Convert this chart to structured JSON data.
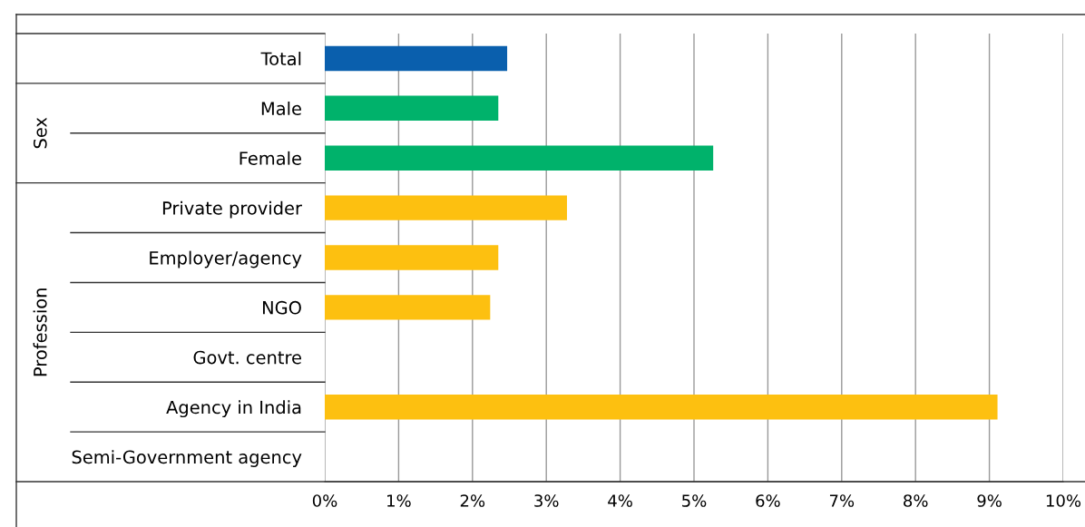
{
  "chart_data": {
    "type": "bar",
    "orientation": "horizontal",
    "categories": [
      "Total",
      "Male",
      "Female",
      "Private provider",
      "Employer/agency",
      "NGO",
      "Govt. centre",
      "Agency in India",
      "Semi-Government agency"
    ],
    "values": [
      2.47,
      2.35,
      5.26,
      3.28,
      2.35,
      2.24,
      0,
      9.11,
      0
    ],
    "colors": [
      "#0a5fad",
      "#00b26b",
      "#00b26b",
      "#fdc010",
      "#fdc010",
      "#fdc010",
      "#fdc010",
      "#fdc010",
      "#fdc010"
    ],
    "xlim": [
      0,
      10
    ],
    "xticks": [
      {
        "value": 0,
        "label": "0%"
      },
      {
        "value": 1,
        "label": "1%"
      },
      {
        "value": 2,
        "label": "2%"
      },
      {
        "value": 3,
        "label": "3%"
      },
      {
        "value": 4,
        "label": "4%"
      },
      {
        "value": 5,
        "label": "5%"
      },
      {
        "value": 6,
        "label": "6%"
      },
      {
        "value": 7,
        "label": "7%"
      },
      {
        "value": 8,
        "label": "8%"
      },
      {
        "value": 9,
        "label": "9%"
      },
      {
        "value": 10,
        "label": "10%"
      }
    ],
    "annotations": [
      "Sex",
      "Profession"
    ],
    "grid": "x",
    "legend": false
  }
}
